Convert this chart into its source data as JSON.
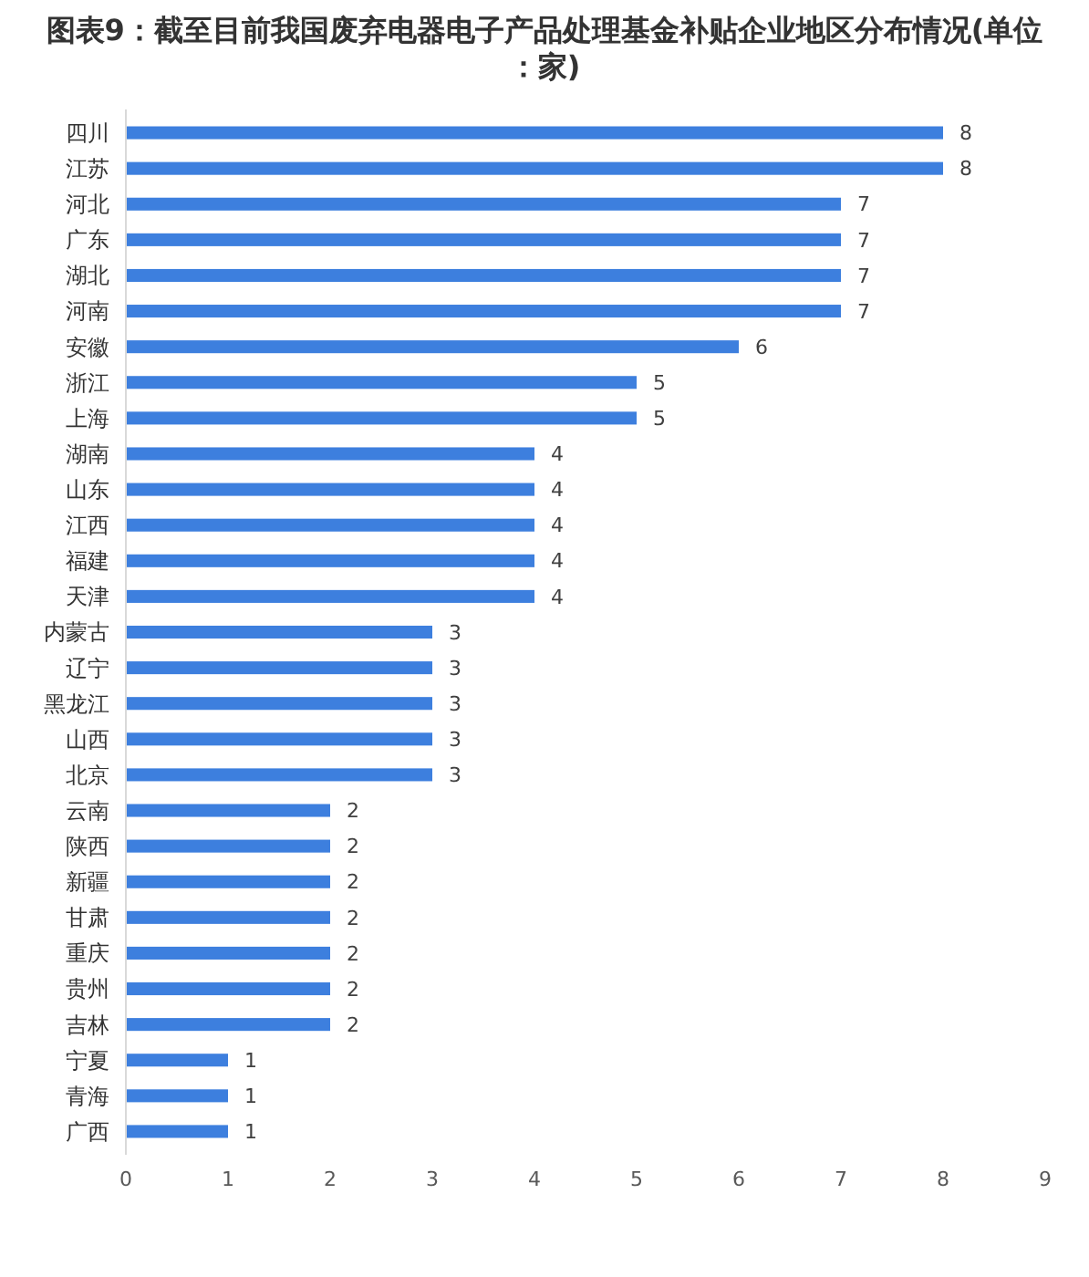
{
  "chart_data": {
    "type": "bar",
    "orientation": "horizontal",
    "title": "图表9：截至目前我国废弃电器电子产品处理基金补贴企业地区分布情况(单位：家)",
    "categories": [
      "四川",
      "江苏",
      "河北",
      "广东",
      "湖北",
      "河南",
      "安徽",
      "浙江",
      "上海",
      "湖南",
      "山东",
      "江西",
      "福建",
      "天津",
      "内蒙古",
      "辽宁",
      "黑龙江",
      "山西",
      "北京",
      "云南",
      "陕西",
      "新疆",
      "甘肃",
      "重庆",
      "贵州",
      "吉林",
      "宁夏",
      "青海",
      "广西"
    ],
    "values": [
      8,
      8,
      7,
      7,
      7,
      7,
      6,
      5,
      5,
      4,
      4,
      4,
      4,
      4,
      3,
      3,
      3,
      3,
      3,
      2,
      2,
      2,
      2,
      2,
      2,
      2,
      1,
      1,
      1
    ],
    "color": "#3d7fde",
    "xlim": [
      0,
      9
    ],
    "xticks": [
      0,
      1,
      2,
      3,
      4,
      5,
      6,
      7,
      8,
      9
    ],
    "data_labels": true
  }
}
